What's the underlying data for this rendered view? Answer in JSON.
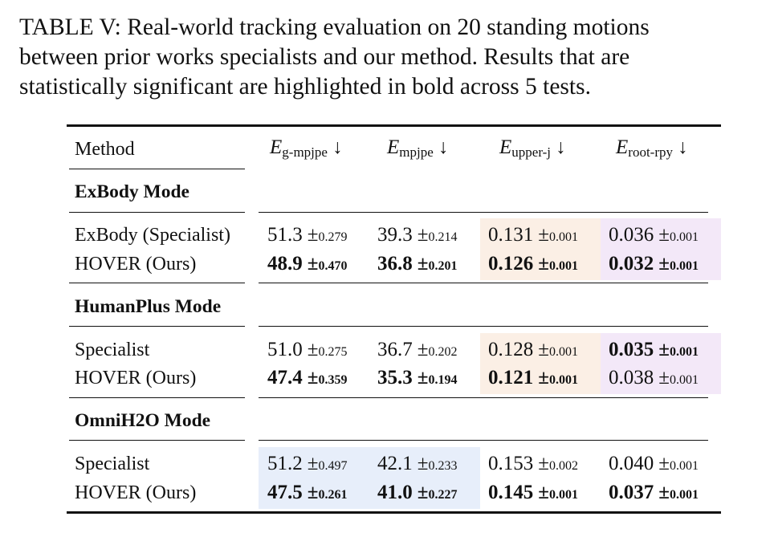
{
  "caption": [
    "TABLE V: Real-world tracking evaluation on 20 standing motions",
    "between prior works specialists and our method. Results that are",
    "statistically significant are highlighted in bold across 5 tests."
  ],
  "table": {
    "method_header": "Method",
    "columns": [
      {
        "sym": "E",
        "sub": "g-mpjpe",
        "arrow": "↓"
      },
      {
        "sym": "E",
        "sub": "mpjpe",
        "arrow": "↓"
      },
      {
        "sym": "E",
        "sub": "upper-j",
        "arrow": "↓"
      },
      {
        "sym": "E",
        "sub": "root-rpy",
        "arrow": "↓"
      }
    ],
    "pm_symbol": "±",
    "groups": [
      {
        "name": "ExBody Mode",
        "rows": [
          {
            "method": "ExBody (Specialist)",
            "cells": [
              {
                "v": "51.3",
                "sd": "0.279",
                "bold": false
              },
              {
                "v": "39.3",
                "sd": "0.214",
                "bold": false
              },
              {
                "v": "0.131",
                "sd": "0.001",
                "bold": false
              },
              {
                "v": "0.036",
                "sd": "0.001",
                "bold": false
              }
            ]
          },
          {
            "method": "HOVER (Ours)",
            "cells": [
              {
                "v": "48.9",
                "sd": "0.470",
                "bold": true
              },
              {
                "v": "36.8",
                "sd": "0.201",
                "bold": true
              },
              {
                "v": "0.126",
                "sd": "0.001",
                "bold": true
              },
              {
                "v": "0.032",
                "sd": "0.001",
                "bold": true
              }
            ]
          }
        ],
        "highlight_columns": [
          2,
          3
        ]
      },
      {
        "name": "HumanPlus Mode",
        "rows": [
          {
            "method": "Specialist",
            "cells": [
              {
                "v": "51.0",
                "sd": "0.275",
                "bold": false
              },
              {
                "v": "36.7",
                "sd": "0.202",
                "bold": false
              },
              {
                "v": "0.128",
                "sd": "0.001",
                "bold": false
              },
              {
                "v": "0.035",
                "sd": "0.001",
                "bold": true
              }
            ]
          },
          {
            "method": "HOVER (Ours)",
            "cells": [
              {
                "v": "47.4",
                "sd": "0.359",
                "bold": true
              },
              {
                "v": "35.3",
                "sd": "0.194",
                "bold": true
              },
              {
                "v": "0.121",
                "sd": "0.001",
                "bold": true
              },
              {
                "v": "0.038",
                "sd": "0.001",
                "bold": false
              }
            ]
          }
        ],
        "highlight_columns": [
          2,
          3
        ]
      },
      {
        "name": "OmniH2O Mode",
        "rows": [
          {
            "method": "Specialist",
            "cells": [
              {
                "v": "51.2",
                "sd": "0.497",
                "bold": false
              },
              {
                "v": "42.1",
                "sd": "0.233",
                "bold": false
              },
              {
                "v": "0.153",
                "sd": "0.002",
                "bold": false
              },
              {
                "v": "0.040",
                "sd": "0.001",
                "bold": false
              }
            ]
          },
          {
            "method": "HOVER (Ours)",
            "cells": [
              {
                "v": "47.5",
                "sd": "0.261",
                "bold": true
              },
              {
                "v": "41.0",
                "sd": "0.227",
                "bold": true
              },
              {
                "v": "0.145",
                "sd": "0.001",
                "bold": true
              },
              {
                "v": "0.037",
                "sd": "0.001",
                "bold": true
              }
            ]
          }
        ],
        "highlight_columns": [
          0,
          1
        ]
      }
    ],
    "highlight_colors": [
      "#e7eefa",
      "#e7eefa",
      "#fbefe5",
      "#f3e8f8"
    ]
  }
}
